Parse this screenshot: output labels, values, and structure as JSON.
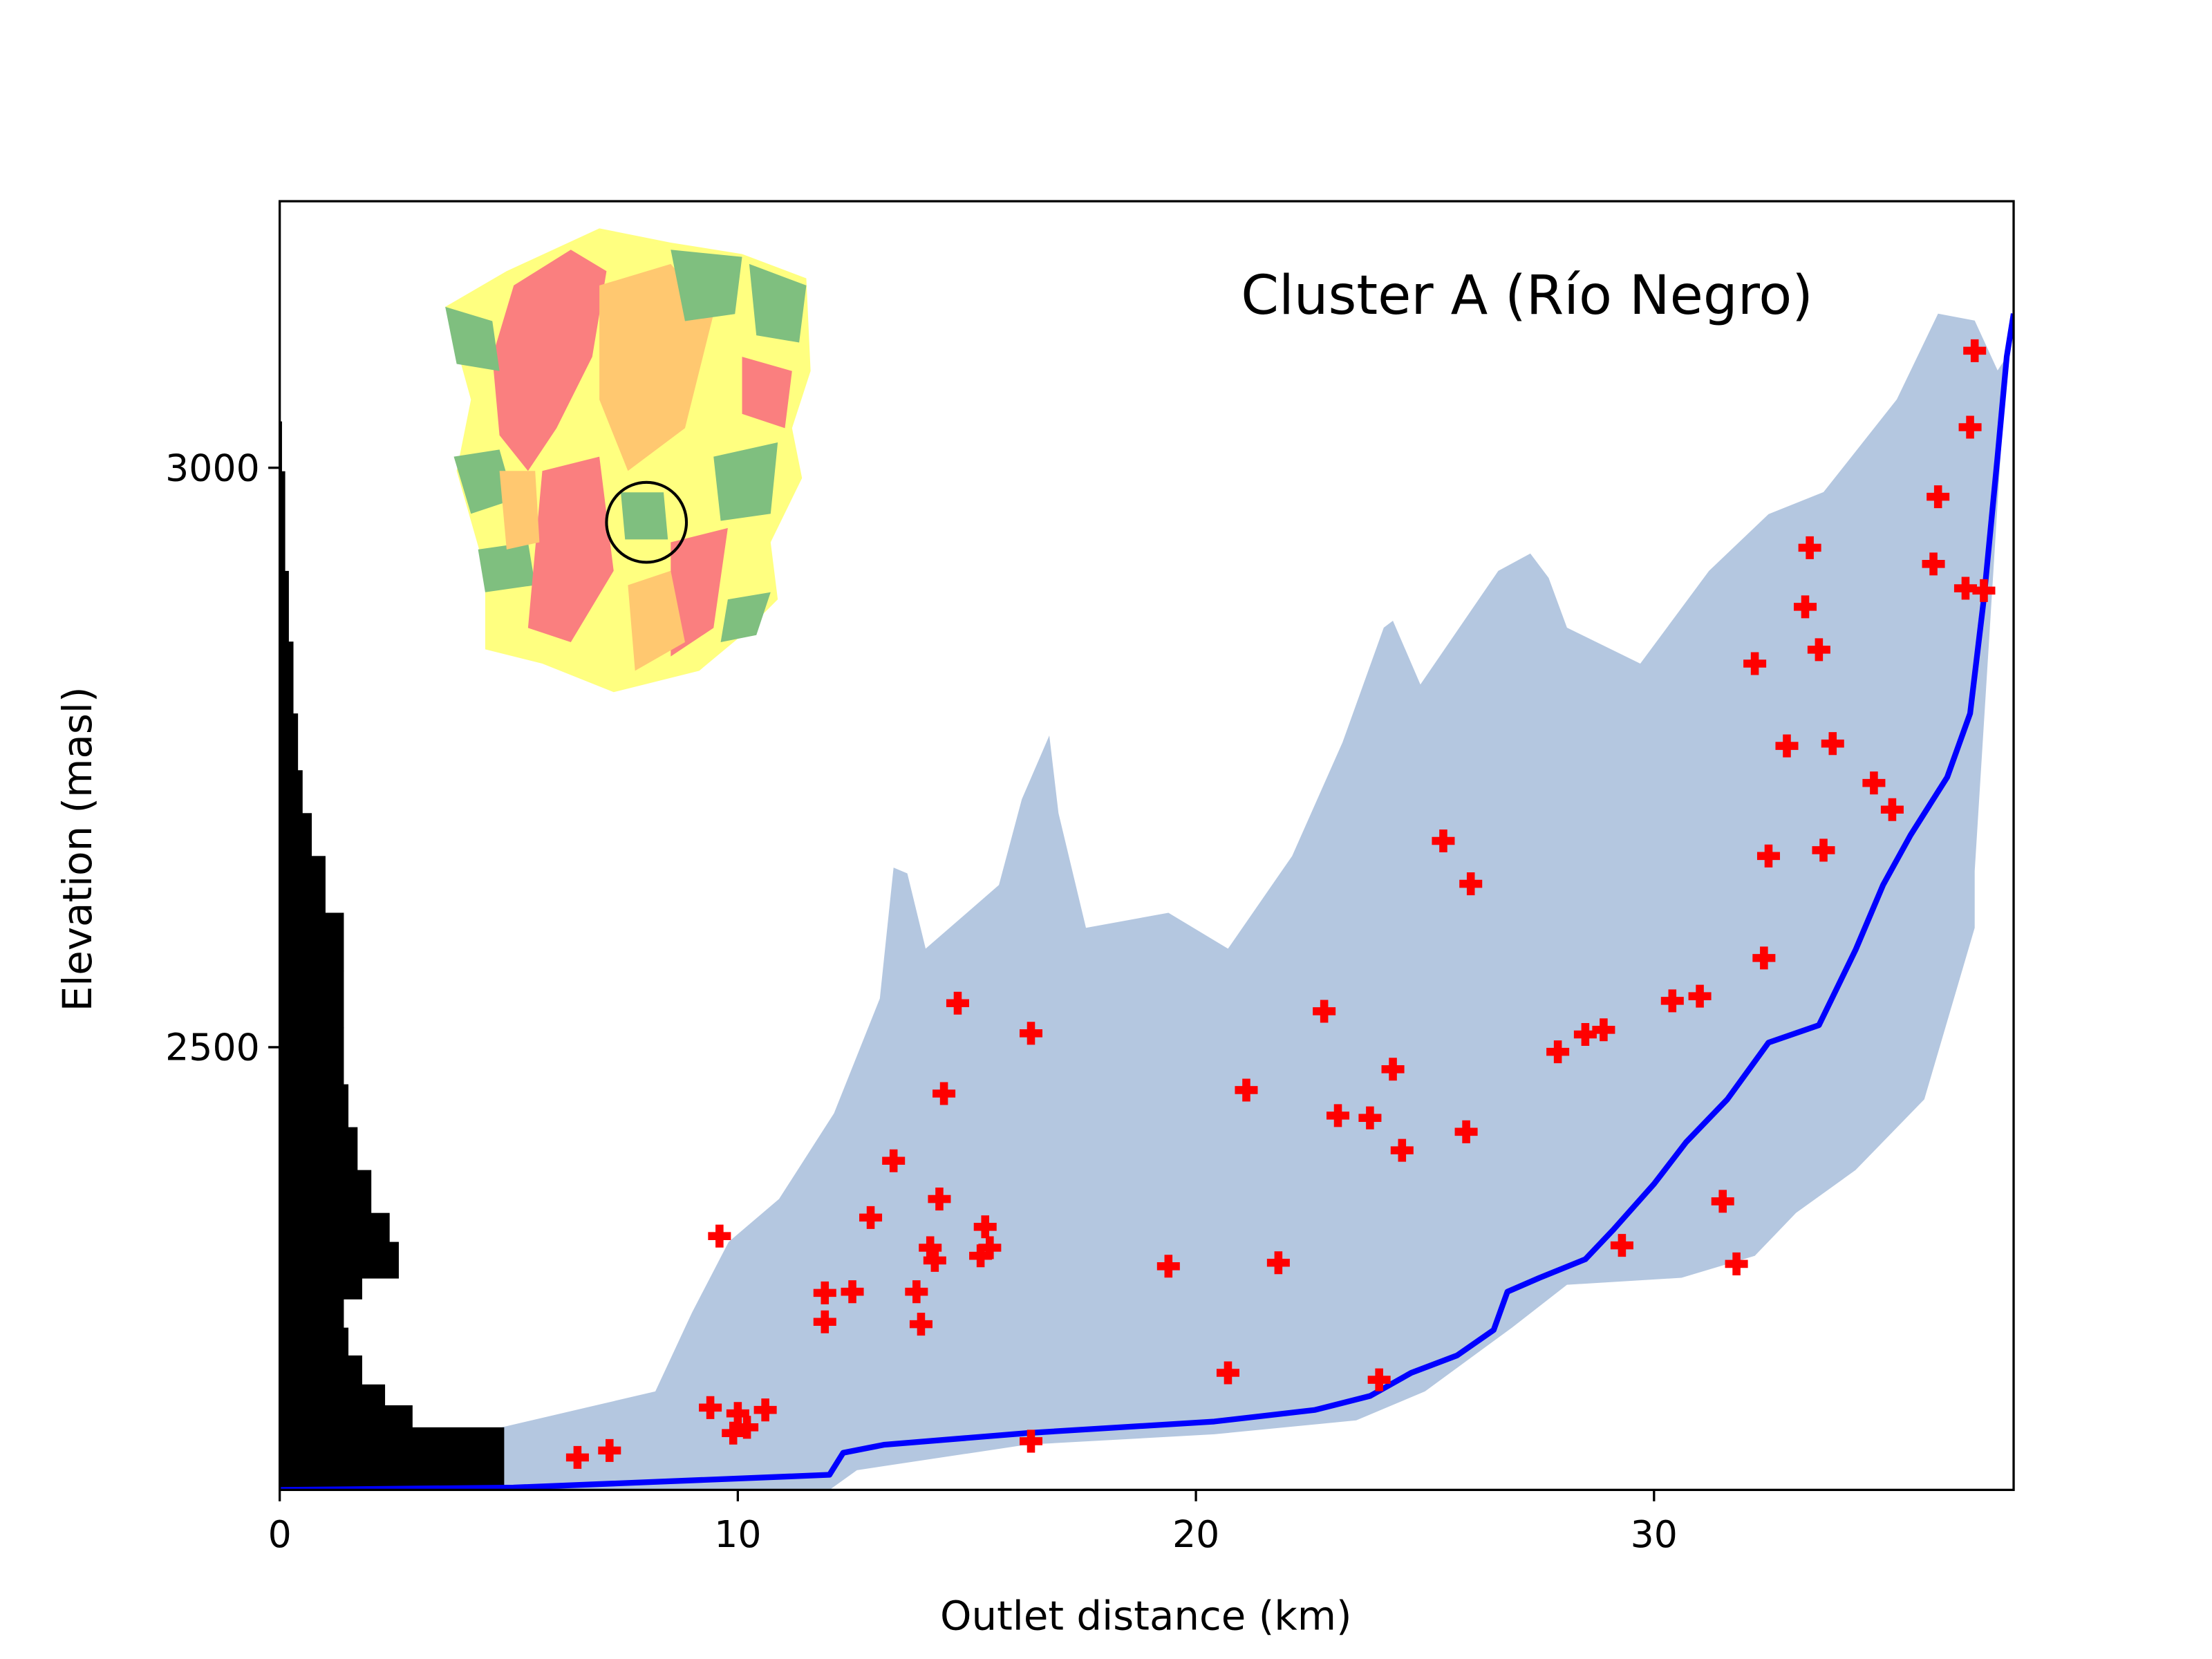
{
  "chart_data": {
    "type": "scatter",
    "title": "Cluster A (Río Negro)",
    "x_label": "Outlet distance (km)",
    "y_label": "Elevation (masl)",
    "xlim": [
      0,
      37.85
    ],
    "ylim": [
      2118,
      3230
    ],
    "xticks": [
      0,
      10,
      20,
      30
    ],
    "yticks": [
      2500,
      3000
    ],
    "areas": [
      {
        "color": "#b0c4de",
        "x": [
          4.2,
          4.2,
          8.2,
          9.0,
          9.8,
          10.9,
          12.1,
          13.1,
          13.4,
          13.7,
          14.1,
          15.7,
          16.2,
          16.8,
          17.0,
          17.6,
          19.4,
          20.7,
          22.1,
          23.2,
          24.1,
          24.3,
          24.9,
          26.6,
          27.3,
          27.7,
          28.1,
          29.7,
          31.2,
          32.5,
          33.7,
          35.3,
          36.2,
          37.0,
          37.5,
          37.7,
          37.0,
          37.0,
          35.9,
          34.4,
          33.1,
          32.2,
          30.6,
          28.1,
          26.9,
          25.0,
          23.5,
          20.4,
          16.3,
          12.6,
          12.0
        ],
        "y": [
          2118,
          2166,
          2203,
          2271,
          2332,
          2369,
          2443,
          2542,
          2655,
          2650,
          2585,
          2640,
          2714,
          2769,
          2702,
          2603,
          2616,
          2585,
          2665,
          2763,
          2862,
          2868,
          2813,
          2911,
          2926,
          2905,
          2862,
          2831,
          2911,
          2960,
          2979,
          3059,
          3133,
          3127,
          3084,
          3096,
          2652,
          2603,
          2455,
          2394,
          2357,
          2320,
          2301,
          2295,
          2258,
          2203,
          2178,
          2166,
          2157,
          2135,
          2118
        ]
      }
    ],
    "histogram": {
      "orientation": "horizontal",
      "color": "#000000",
      "bins": [
        2118,
        2172,
        2191,
        2209,
        2234,
        2258,
        2283,
        2301,
        2332,
        2357,
        2394,
        2431,
        2468,
        2517,
        2566,
        2616,
        2665,
        2702,
        2739,
        2788,
        2850,
        2911,
        2997,
        3040
      ],
      "values": [
        4.9,
        2.9,
        2.3,
        1.8,
        1.5,
        1.4,
        1.8,
        2.6,
        2.4,
        2.0,
        1.7,
        1.5,
        1.4,
        1.4,
        1.4,
        1.0,
        0.7,
        0.5,
        0.4,
        0.3,
        0.2,
        0.12,
        0.05
      ]
    },
    "series": [
      {
        "type": "line",
        "color": "#0000ff",
        "x": [
          0,
          5.1,
          12.0,
          12.3,
          13.2,
          16.3,
          20.4,
          22.6,
          23.8,
          24.7,
          25.7,
          26.5,
          26.8,
          27.5,
          28.5,
          29.1,
          30.0,
          30.7,
          31.6,
          32.5,
          33.6,
          34.4,
          35.0,
          35.6,
          36.4,
          36.9,
          37.2,
          37.5,
          37.7,
          37.85
        ],
        "y": [
          2118,
          2120,
          2131,
          2150,
          2157,
          2167,
          2177,
          2187,
          2199,
          2219,
          2234,
          2256,
          2289,
          2301,
          2317,
          2342,
          2382,
          2418,
          2455,
          2504,
          2519,
          2584,
          2640,
          2683,
          2733,
          2788,
          2887,
          3010,
          3096,
          3133
        ]
      },
      {
        "type": "scatter",
        "color": "#ff0000",
        "x": [
          6.5,
          7.2,
          9.6,
          9.4,
          9.9,
          10.0,
          10.2,
          10.6,
          11.9,
          11.9,
          12.5,
          12.9,
          13.4,
          13.9,
          14.0,
          14.2,
          14.3,
          14.4,
          14.5,
          14.8,
          15.4,
          15.3,
          15.5,
          16.4,
          16.4,
          19.4,
          20.7,
          21.1,
          21.8,
          22.8,
          23.1,
          23.8,
          24.0,
          24.3,
          24.5,
          25.4,
          25.9,
          26.0,
          27.9,
          28.5,
          28.9,
          29.3,
          30.4,
          31.0,
          31.5,
          31.8,
          32.2,
          32.4,
          32.5,
          32.9,
          33.3,
          33.4,
          33.6,
          33.7,
          33.9,
          34.8,
          35.2,
          36.1,
          36.2,
          36.8,
          36.9,
          37.0,
          37.2
        ],
        "y": [
          2146,
          2152,
          2337,
          2189,
          2167,
          2184,
          2172,
          2187,
          2288,
          2263,
          2289,
          2353,
          2402,
          2289,
          2261,
          2327,
          2316,
          2369,
          2460,
          2538,
          2345,
          2320,
          2327,
          2512,
          2160,
          2311,
          2219,
          2463,
          2314,
          2531,
          2441,
          2439,
          2213,
          2481,
          2411,
          2678,
          2427,
          2641,
          2496,
          2511,
          2515,
          2329,
          2540,
          2544,
          2367,
          2313,
          2831,
          2577,
          2665,
          2760,
          2880,
          2931,
          2843,
          2670,
          2762,
          2728,
          2705,
          2917,
          2975,
          2896,
          3035,
          3101,
          2894
        ]
      }
    ]
  }
}
